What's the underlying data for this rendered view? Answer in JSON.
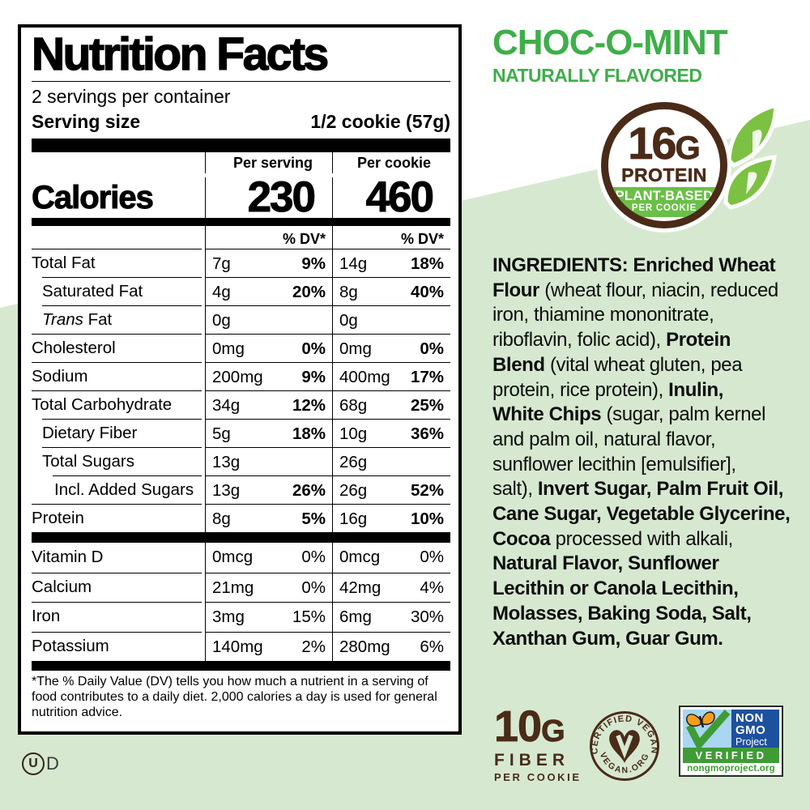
{
  "colors": {
    "accent_green": "#3fae4a",
    "pale_green": "#d6e9d0",
    "brown": "#4a2b18",
    "leaf_green": "#7cc142",
    "band_green": "#6abf47",
    "nongmo_blue": "#1d509e",
    "sky_blue": "#a9d6f1",
    "nongmo_green": "#3f9c35",
    "butterfly_orange": "#f59e1b"
  },
  "label": {
    "title": "Nutrition Facts",
    "servings_per_container": "2 servings per container",
    "serving_size_label": "Serving size",
    "serving_size_value": "1/2 cookie (57g)",
    "col1_header": "Per serving",
    "col2_header": "Per cookie",
    "calories_label": "Calories",
    "calories_per_serving": "230",
    "calories_per_cookie": "460",
    "dv_header": "% DV*",
    "rows": [
      {
        "name": "Total Fat",
        "a1": "7g",
        "p1": "9%",
        "a2": "14g",
        "p2": "18%"
      },
      {
        "name": "Saturated Fat",
        "a1": "4g",
        "p1": "20%",
        "a2": "8g",
        "p2": "40%"
      },
      {
        "name_italic": "Trans",
        "name": " Fat",
        "a1": "0g",
        "a2": "0g"
      },
      {
        "name": "Cholesterol",
        "a1": "0mg",
        "p1": "0%",
        "a2": "0mg",
        "p2": "0%"
      },
      {
        "name": "Sodium",
        "a1": "200mg",
        "p1": "9%",
        "a2": "400mg",
        "p2": "17%"
      },
      {
        "name": "Total Carbohydrate",
        "a1": "34g",
        "p1": "12%",
        "a2": "68g",
        "p2": "25%"
      },
      {
        "name": "Dietary Fiber",
        "a1": "5g",
        "p1": "18%",
        "a2": "10g",
        "p2": "36%"
      },
      {
        "name": "Total Sugars",
        "a1": "13g",
        "a2": "26g"
      },
      {
        "name": "Incl. Added Sugars",
        "a1": "13g",
        "p1": "26%",
        "a2": "26g",
        "p2": "52%"
      },
      {
        "name": "Protein",
        "a1": "8g",
        "p1": "5%",
        "a2": "16g",
        "p2": "10%"
      }
    ],
    "vrows": [
      {
        "name": "Vitamin D",
        "a1": "0mcg",
        "p1": "0%",
        "a2": "0mcg",
        "p2": "0%"
      },
      {
        "name": "Calcium",
        "a1": "21mg",
        "p1": "0%",
        "a2": "42mg",
        "p2": "4%"
      },
      {
        "name": "Iron",
        "a1": "3mg",
        "p1": "15%",
        "a2": "6mg",
        "p2": "30%"
      },
      {
        "name": "Potassium",
        "a1": "140mg",
        "p1": "2%",
        "a2": "280mg",
        "p2": "6%"
      }
    ],
    "footnote_lines": [
      "*The % Daily Value (DV) tells you how much a nutrient in a serving of",
      "food contributes to a daily diet. 2,000 calories a day is used for general",
      "nutrition advice."
    ],
    "kosher_u": "U",
    "kosher_d": "D"
  },
  "header": {
    "product_name": "CHOC-O-MINT",
    "subtitle": "NATURALLY FLAVORED"
  },
  "protein_badge": {
    "amount": "16",
    "unit": "G",
    "label": "PROTEIN",
    "band_line1": "PLANT-BASED",
    "band_line2": "PER COOKIE"
  },
  "ingredients": {
    "lines": [
      [
        {
          "t": "INGREDIENTS: Enriched Wheat",
          "b": true
        }
      ],
      [
        {
          "t": "Flour",
          "b": true
        },
        {
          "t": " (wheat flour, niacin, reduced"
        }
      ],
      [
        {
          "t": "iron, thiamine mononitrate,"
        }
      ],
      [
        {
          "t": "riboflavin, folic acid), "
        },
        {
          "t": "Protein",
          "b": true
        }
      ],
      [
        {
          "t": "Blend",
          "b": true
        },
        {
          "t": " (vital wheat gluten, pea"
        }
      ],
      [
        {
          "t": "protein, rice protein), "
        },
        {
          "t": "Inulin,",
          "b": true
        }
      ],
      [
        {
          "t": "White Chips",
          "b": true
        },
        {
          "t": " (sugar, palm kernel"
        }
      ],
      [
        {
          "t": "and palm oil, natural flavor,"
        }
      ],
      [
        {
          "t": "sunflower lecithin [emulsifier],"
        }
      ],
      [
        {
          "t": "salt), "
        },
        {
          "t": "Invert Sugar, Palm Fruit Oil,",
          "b": true
        }
      ],
      [
        {
          "t": "Cane Sugar, Vegetable Glycerine,",
          "b": true
        }
      ],
      [
        {
          "t": "Cocoa",
          "b": true
        },
        {
          "t": " processed with alkali,"
        }
      ],
      [
        {
          "t": "Natural Flavor, Sunflower",
          "b": true
        }
      ],
      [
        {
          "t": "Lecithin or Canola Lecithin,",
          "b": true
        }
      ],
      [
        {
          "t": "Molasses, Baking Soda, Salt,",
          "b": true
        }
      ],
      [
        {
          "t": "Xanthan Gum, Guar Gum.",
          "b": true
        }
      ]
    ]
  },
  "fiber_badge": {
    "amount": "10",
    "unit": "G",
    "label": "FIBER",
    "sub": "PER COOKIE"
  },
  "vegan_badge": {
    "arc_top": "CERTIFIED VEGAN",
    "arc_bottom": "VEGAN.ORG"
  },
  "nongmo_badge": {
    "line1": "NON",
    "line2": "GMO",
    "line3": "Project",
    "verified": "VERIFIED",
    "url": "nongmoproject.org"
  }
}
